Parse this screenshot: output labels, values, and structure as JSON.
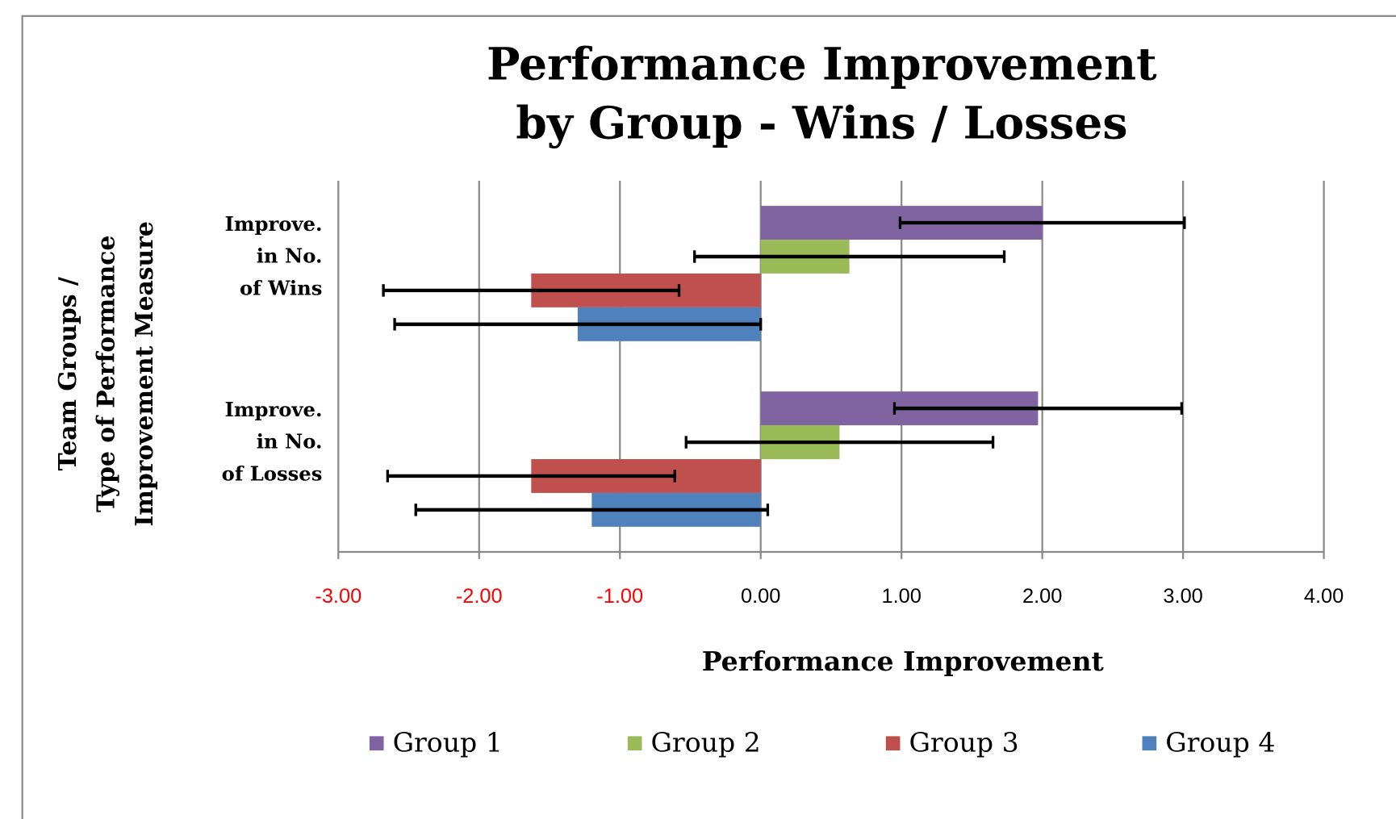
{
  "chart_data": {
    "type": "barh",
    "title": [
      "Performance Improvement",
      "by Group  - Wins / Losses"
    ],
    "xlabel": "Performance Improvement",
    "ylabel": [
      "Team Groups /",
      "Type of Performance",
      "Improvement Measure"
    ],
    "categories": [
      [
        "Improve.",
        "in No.",
        "of Wins"
      ],
      [
        "Improve.",
        "in No.",
        "of Losses"
      ]
    ],
    "series": [
      {
        "name": "Group 1",
        "color": "#8064a2",
        "values": [
          2.0,
          1.97
        ],
        "errors": [
          1.01,
          1.02
        ]
      },
      {
        "name": "Group 2",
        "color": "#9bbb59",
        "values": [
          0.63,
          0.56
        ],
        "errors": [
          1.1,
          1.09
        ]
      },
      {
        "name": "Group 3",
        "color": "#c0504d",
        "values": [
          -1.63,
          -1.63
        ],
        "errors": [
          1.05,
          1.02
        ]
      },
      {
        "name": "Group 4",
        "color": "#4f81bd",
        "values": [
          -1.3,
          -1.2
        ],
        "errors": [
          1.3,
          1.25
        ]
      }
    ],
    "xlim": [
      -3,
      4
    ],
    "xticks": [
      {
        "value": -3,
        "label": "-3.00"
      },
      {
        "value": -2,
        "label": "-2.00"
      },
      {
        "value": -1,
        "label": "-1.00"
      },
      {
        "value": 0,
        "label": "0.00"
      },
      {
        "value": 1,
        "label": "1.00"
      },
      {
        "value": 2,
        "label": "2.00"
      },
      {
        "value": 3,
        "label": "3.00"
      },
      {
        "value": 4,
        "label": "4.00"
      }
    ],
    "negative_tick_color": "#ff0000",
    "tick_color": "#000000",
    "grid": true,
    "legend": "bottom"
  }
}
